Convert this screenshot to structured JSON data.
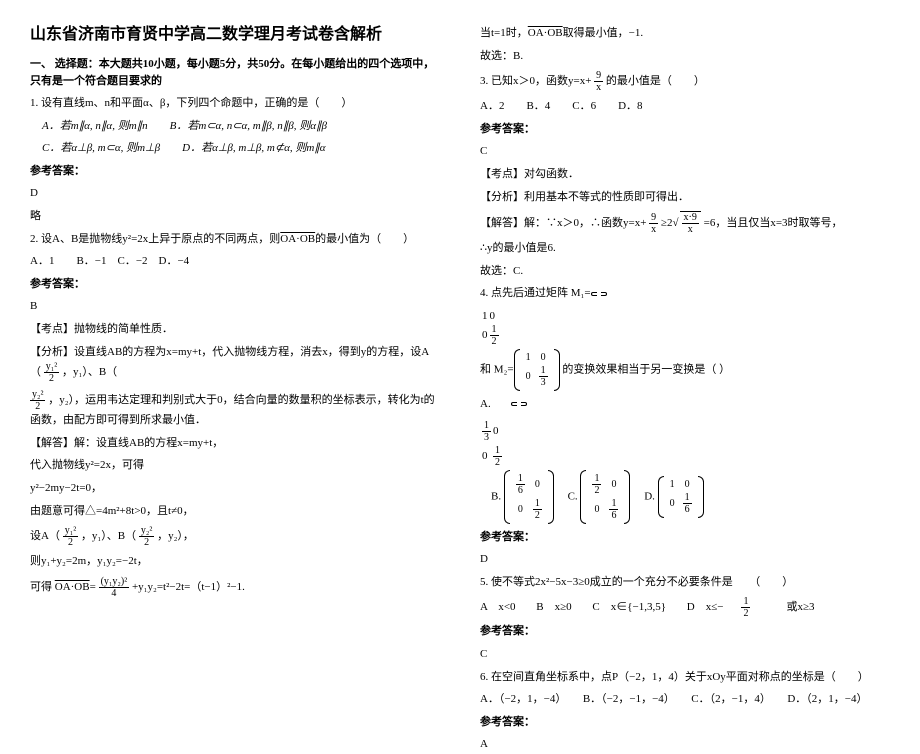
{
  "title": "山东省济南市育贤中学高二数学理月考试卷含解析",
  "section1": "一、 选择题：本大题共10小题，每小题5分，共50分。在每小题给出的四个选项中，只有是一个符合题目要求的",
  "q1": {
    "stem": "1. 设有直线m、n和平面α、β，下列四个命题中，正确的是（　　）",
    "oA": "A．若m∥α, n∥α, 则m∥n",
    "oB": "B．若m⊂α, n⊂α, m∥β, n∥β, 则α∥β",
    "oC": "C．若α⊥β, m⊂α, 则m⊥β",
    "oD": "D．若α⊥β, m⊥β, m⊄α, 则m∥α",
    "ansLabel": "参考答案：",
    "ans": "D",
    "extra": "略"
  },
  "q2": {
    "stem_a": "2. 设A、B是抛物线y²=2x上异于原点的不同两点，则",
    "stem_b": "的最小值为（　　）",
    "vec": "OA·OB",
    "opts": "A．1　　B．−1　C．−2　D．−4",
    "ansLabel": "参考答案：",
    "ans": "B",
    "kd": "【考点】抛物线的简单性质．",
    "fx1": "【分析】设直线AB的方程为x=my+t，代入抛物线方程，消去x，得到y的方程，设A（",
    "fx2": "，y₁）、B（",
    "fx3": "，y₂），运用韦达定理和判别式大于0，结合向量的数量积的坐标表示，转化为t的函数，由配方即可得到所求最小值．",
    "jd1": "【解答】解：设直线AB的方程x=my+t，",
    "jd2": "代入抛物线y²=2x，可得",
    "jd3": "y²−2my−2t=0，",
    "jd4": "由题意可得△=4m²+8t>0，且t≠0，",
    "jd5a": "设A（",
    "jd5b": "，y₁）、B（",
    "jd5c": "，y₂），",
    "jd6": "则y₁+y₂=2m，y₁y₂=−2t，",
    "jd7a": "可得",
    "jd7b": "+y₁y₂=t²−2t=（t−1）²−1.",
    "vec2": "OA·OB",
    "y12": "y₁²",
    "y22": "y₂²",
    "two": "2",
    "y1y2sq": "(y₁y₂)²",
    "four": "4"
  },
  "r1": {
    "l1a": "当t=1时，",
    "l1b": "取得最小值，−1.",
    "vec": "OA·OB",
    "l2": "故选：B."
  },
  "q3": {
    "stem_a": "3. 已知x＞0，函数y=x+",
    "stem_b": "的最小值是（　　）",
    "nine": "9",
    "x": "x",
    "opts": "A．2　　B．4　　C．6　　D．8",
    "ansLabel": "参考答案：",
    "ans": "C",
    "kd": "【考点】对勾函数．",
    "fx": "【分析】利用基本不等式的性质即可得出．",
    "jd_a": "【解答】解：∵x＞0，∴函数y=x+",
    "jd_b": "≥2",
    "jd_c": "=6，当且仅当x=3时取等号，",
    "sq": "x·9/x",
    "jd2": "∴y的最小值是6.",
    "jd3": "故选：C."
  },
  "q4": {
    "stem_a": "4. 点先后通过矩阵",
    "stem_b": "和",
    "stem_c": "的变换效果相当于另一变换是（ ）",
    "m1": "M₁=",
    "m2": "M₂=",
    "A": "A.",
    "B": "B.",
    "C": "C.",
    "D": "D.",
    "ansLabel": "参考答案：",
    "ans": "D"
  },
  "q5": {
    "stem": "5. 使不等式2x²−5x−3≥0成立的一个充分不必要条件是　　（　　）",
    "oA": "A　x<0",
    "oB": "B　x≥0",
    "oC": "C　x∈{−1,3,5}",
    "oDa": "D　x≤−",
    "oDb": "或x≥3",
    "one": "1",
    "two": "2",
    "ansLabel": "参考答案：",
    "ans": "C"
  },
  "q6": {
    "stem": "6. 在空间直角坐标系中，点P（−2，1，4）关于xOy平面对称点的坐标是（　　）",
    "opts": "A．（−2，1，−4）　　B．（−2，−1，−4）　　C．（2，−1，4）　　D．（2，1，−4）",
    "ansLabel": "参考答案：",
    "ans": "A"
  }
}
